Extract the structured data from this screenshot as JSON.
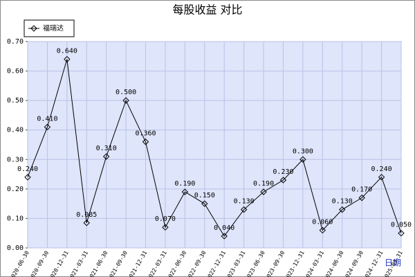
{
  "chart_data": {
    "type": "line",
    "title": "每股收益 对比",
    "x_label": "日期",
    "categories": [
      "2020-06-30",
      "2020-09-30",
      "2020-12-31",
      "2021-03-31",
      "2021-06-30",
      "2021-09-30",
      "2021-12-31",
      "2022-03-31",
      "2022-06-30",
      "2022-09-30",
      "2022-12-31",
      "2023-03-31",
      "2023-06-30",
      "2023-09-30",
      "2023-12-31",
      "2024-03-31",
      "2024-06-30",
      "2024-09-30",
      "2024-12-31",
      "2025-03-31"
    ],
    "series": [
      {
        "name": "福瑞达",
        "color": "#000000",
        "values": [
          0.24,
          0.41,
          0.64,
          0.085,
          0.31,
          0.5,
          0.36,
          0.07,
          0.19,
          0.15,
          0.04,
          0.13,
          0.19,
          0.23,
          0.3,
          0.06,
          0.13,
          0.17,
          0.24,
          0.05
        ],
        "value_labels": [
          "0.240",
          "0.410",
          "0.640",
          "0.085",
          "0.310",
          "0.500",
          "0.360",
          "0.070",
          "0.190",
          "0.150",
          "0.040",
          "0.130",
          "0.190",
          "0.230",
          "0.300",
          "0.060",
          "0.130",
          "0.170",
          "0.240",
          "0.050"
        ]
      }
    ],
    "ylim": [
      0,
      0.7
    ],
    "yticks": [
      {
        "value": 0,
        "label": "0.00"
      },
      {
        "value": 0.1,
        "label": "0.10"
      },
      {
        "value": 0.2,
        "label": "0.20"
      },
      {
        "value": 0.3,
        "label": "0.30"
      },
      {
        "value": 0.4,
        "label": "0.40"
      },
      {
        "value": 0.5,
        "label": "0.50"
      },
      {
        "value": 0.6,
        "label": "0.60"
      },
      {
        "value": 0.7,
        "label": "0.70"
      }
    ],
    "grid": true,
    "legend": "top-left",
    "plot_color": "#dfe5fa"
  }
}
